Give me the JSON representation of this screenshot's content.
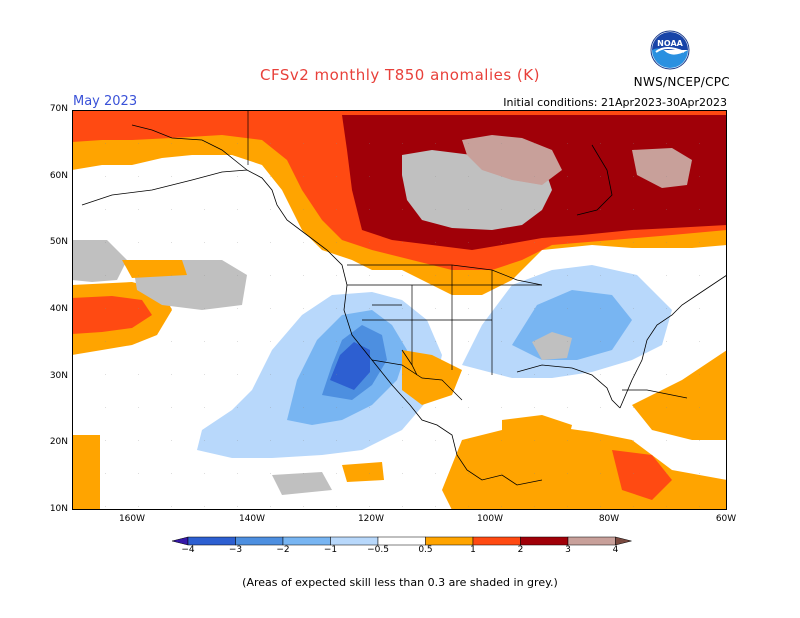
{
  "header": {
    "title": "CFSv2 monthly T850 anomalies (K)",
    "month": "May 2023",
    "initial_conditions": "Initial conditions: 21Apr2023-30Apr2023",
    "agency": "NWS/NCEP/CPC",
    "logo_text": "NOAA"
  },
  "map": {
    "latitude_labels": [
      "70N",
      "60N",
      "50N",
      "40N",
      "30N",
      "20N",
      "10N"
    ],
    "longitude_labels": [
      "160W",
      "140W",
      "120W",
      "100W",
      "80W",
      "60W"
    ],
    "extent": {
      "lon_min": -170,
      "lon_max": -60,
      "lat_min": 10,
      "lat_max": 70
    },
    "grid": true
  },
  "colorbar": {
    "labels": [
      "−4",
      "−3",
      "−2",
      "−1",
      "−0.5",
      "0.5",
      "1",
      "2",
      "3",
      "4"
    ],
    "colors": [
      "#3517a8",
      "#2d5fd1",
      "#4d8fe0",
      "#78b5f2",
      "#b8d8fb",
      "#ffffff",
      "#ffa400",
      "#ff4a12",
      "#a00008",
      "#c8a09a",
      "#7a4a40"
    ],
    "grey_color": "#c0c0c0"
  },
  "footnote": "(Areas of expected skill less than 0.3 are shaded in grey.)"
}
